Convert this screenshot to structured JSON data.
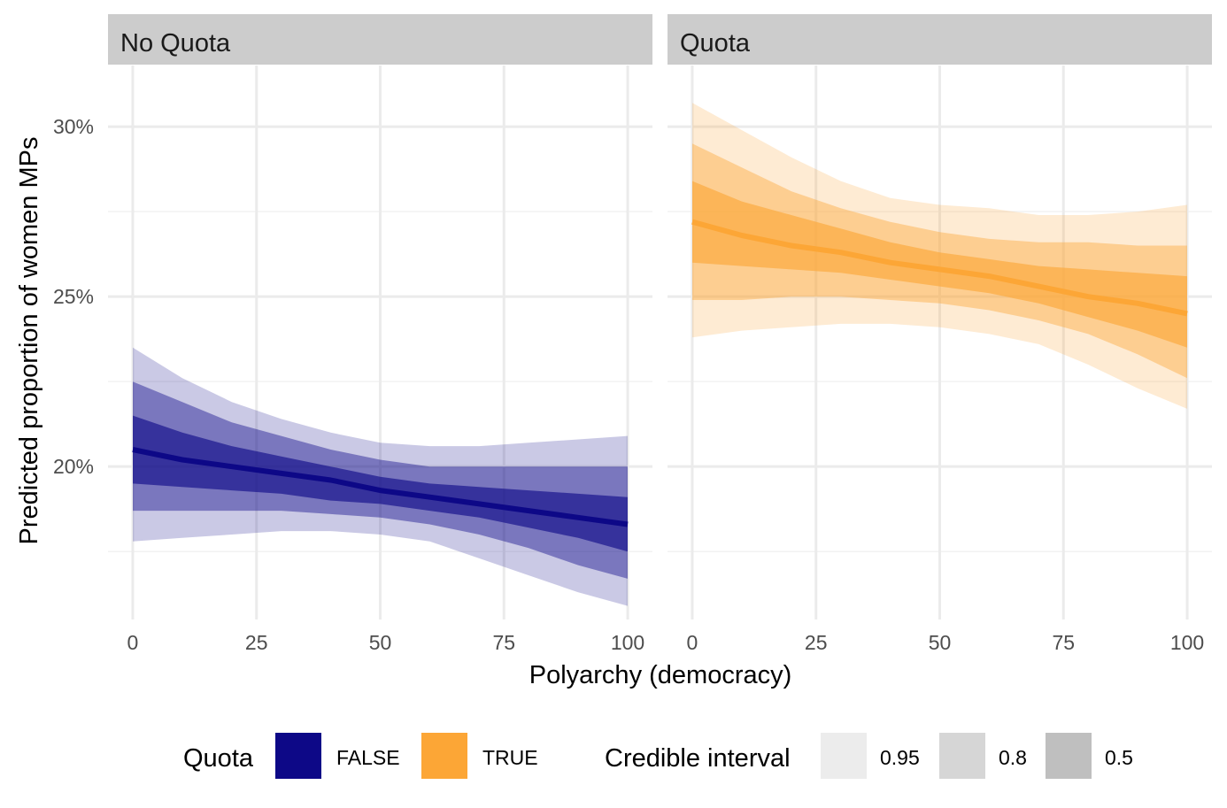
{
  "chart_data": {
    "type": "line",
    "x_label": "Polyarchy (democracy)",
    "y_label": "Predicted proportion of women MPs",
    "x_ticks": [
      0,
      25,
      50,
      75,
      100
    ],
    "x_tick_labels": [
      "0",
      "25",
      "50",
      "75",
      "100"
    ],
    "y_ticks": [
      0.2,
      0.25,
      0.3
    ],
    "y_tick_labels": [
      "20%",
      "25%",
      "30%"
    ],
    "xlim": [
      -5,
      105
    ],
    "ylim": [
      0.155,
      0.318
    ],
    "grid": true,
    "legend_position": "bottom",
    "panels": [
      {
        "title": "No Quota",
        "series_name": "FALSE",
        "color": "#0d0887",
        "x": [
          0,
          10,
          20,
          30,
          40,
          50,
          60,
          70,
          80,
          90,
          100
        ],
        "median": [
          0.205,
          0.202,
          0.2,
          0.198,
          0.196,
          0.193,
          0.191,
          0.189,
          0.187,
          0.185,
          0.183
        ],
        "ci95_low": [
          0.178,
          0.179,
          0.18,
          0.181,
          0.181,
          0.18,
          0.178,
          0.173,
          0.168,
          0.163,
          0.159
        ],
        "ci95_high": [
          0.235,
          0.226,
          0.219,
          0.214,
          0.21,
          0.207,
          0.206,
          0.206,
          0.207,
          0.208,
          0.209
        ],
        "ci80_low": [
          0.187,
          0.187,
          0.187,
          0.187,
          0.186,
          0.185,
          0.183,
          0.18,
          0.176,
          0.171,
          0.167
        ],
        "ci80_high": [
          0.225,
          0.219,
          0.213,
          0.209,
          0.205,
          0.202,
          0.2,
          0.2,
          0.2,
          0.2,
          0.2
        ],
        "ci50_low": [
          0.195,
          0.194,
          0.193,
          0.192,
          0.19,
          0.189,
          0.187,
          0.185,
          0.182,
          0.179,
          0.175
        ],
        "ci50_high": [
          0.215,
          0.21,
          0.206,
          0.203,
          0.2,
          0.197,
          0.195,
          0.194,
          0.193,
          0.192,
          0.191
        ]
      },
      {
        "title": "Quota",
        "series_name": "TRUE",
        "color": "#fca636",
        "x": [
          0,
          10,
          20,
          30,
          40,
          50,
          60,
          70,
          80,
          90,
          100
        ],
        "median": [
          0.272,
          0.268,
          0.265,
          0.263,
          0.26,
          0.258,
          0.256,
          0.253,
          0.25,
          0.248,
          0.245
        ],
        "ci95_low": [
          0.238,
          0.24,
          0.241,
          0.242,
          0.242,
          0.241,
          0.239,
          0.236,
          0.23,
          0.223,
          0.217
        ],
        "ci95_high": [
          0.307,
          0.299,
          0.291,
          0.284,
          0.279,
          0.277,
          0.276,
          0.274,
          0.274,
          0.275,
          0.277
        ],
        "ci80_low": [
          0.249,
          0.249,
          0.25,
          0.25,
          0.249,
          0.248,
          0.246,
          0.243,
          0.239,
          0.233,
          0.226
        ],
        "ci80_high": [
          0.295,
          0.288,
          0.281,
          0.276,
          0.272,
          0.269,
          0.267,
          0.266,
          0.266,
          0.265,
          0.265
        ],
        "ci50_low": [
          0.26,
          0.259,
          0.258,
          0.257,
          0.255,
          0.253,
          0.251,
          0.248,
          0.244,
          0.24,
          0.235
        ],
        "ci50_high": [
          0.284,
          0.278,
          0.274,
          0.27,
          0.266,
          0.263,
          0.261,
          0.259,
          0.258,
          0.257,
          0.256
        ]
      }
    ],
    "band_opacity": {
      "0.95": 0.22,
      "0.8": 0.42,
      "0.5": 0.62
    },
    "legend": {
      "quota_title": "Quota",
      "quota_items": [
        {
          "label": "FALSE",
          "color": "#0d0887"
        },
        {
          "label": "TRUE",
          "color": "#fca636"
        }
      ],
      "ci_title": "Credible interval",
      "ci_items": [
        {
          "label": "0.95",
          "color": "#ececec"
        },
        {
          "label": "0.8",
          "color": "#d6d6d6"
        },
        {
          "label": "0.5",
          "color": "#bfbfbf"
        }
      ]
    }
  }
}
